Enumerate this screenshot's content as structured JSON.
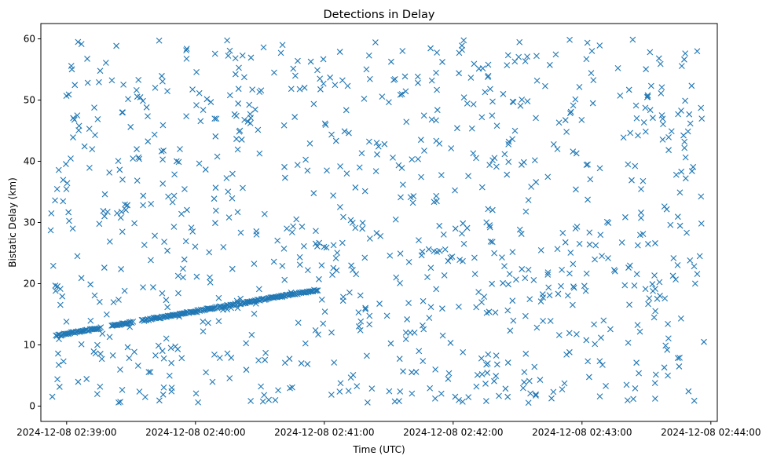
{
  "chart_data": {
    "type": "scatter",
    "title": "Detections in Delay",
    "xlabel": "Time (UTC)",
    "ylabel": "Bistatic Delay (km)",
    "marker": "x",
    "color": "#1f77b4",
    "grid": false,
    "xlim": [
      "2024-12-08 02:38:48",
      "2024-12-08 02:44:03"
    ],
    "ylim": [
      -2.5,
      62.5
    ],
    "x_ticks": [
      "2024-12-08 02:39:00",
      "2024-12-08 02:40:00",
      "2024-12-08 02:41:00",
      "2024-12-08 02:42:00",
      "2024-12-08 02:43:00",
      "2024-12-08 02:44:00"
    ],
    "y_ticks": [
      0,
      10,
      20,
      30,
      40,
      50,
      60
    ],
    "track": {
      "x_start": "2024-12-08 02:38:55",
      "x_end": "2024-12-08 02:40:57",
      "y_start": 11.5,
      "y_end": 19.0,
      "segments": [
        [
          "2024-12-08 02:38:55",
          "2024-12-08 02:39:16"
        ],
        [
          "2024-12-08 02:39:21",
          "2024-12-08 02:39:31"
        ],
        [
          "2024-12-08 02:39:35",
          "2024-12-08 02:40:57"
        ]
      ]
    },
    "clutter_region": {
      "x_start": "2024-12-08 02:38:52",
      "x_end": "2024-12-08 02:43:57",
      "y_range": [
        0.5,
        60
      ]
    },
    "notes_series": [
      {
        "x": [
          "2024-12-08 02:41:38",
          "2024-12-08 02:41:40",
          "2024-12-08 02:41:42"
        ],
        "y": [
          12,
          12,
          12
        ]
      }
    ]
  }
}
